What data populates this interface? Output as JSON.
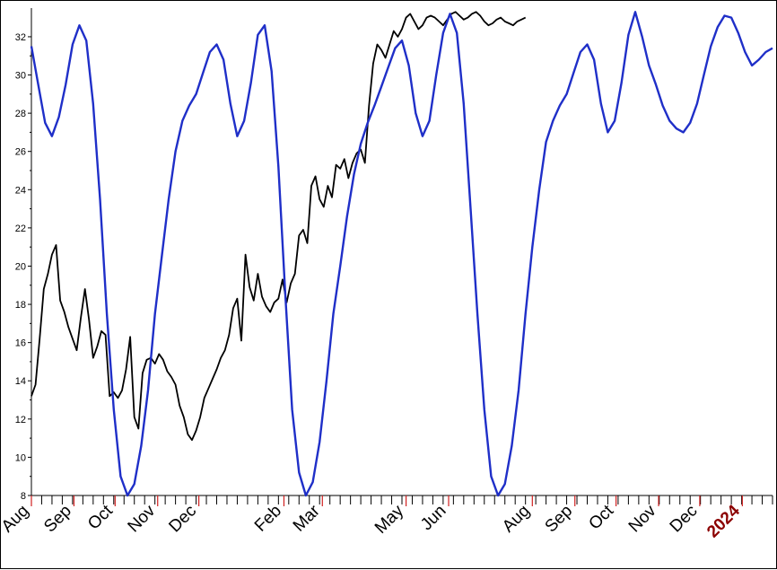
{
  "chart_data": {
    "type": "line",
    "title": "",
    "xlabel": "",
    "ylabel": "",
    "ylim": [
      8,
      33.5
    ],
    "yticks": [
      8,
      10,
      12,
      14,
      16,
      18,
      20,
      22,
      24,
      26,
      28,
      30,
      32
    ],
    "grid": false,
    "legend": "none",
    "x_tick_labels": [
      {
        "label": "Aug",
        "x": 0
      },
      {
        "label": "Sep",
        "x": 31
      },
      {
        "label": "Oct",
        "x": 61
      },
      {
        "label": "Nov",
        "x": 92
      },
      {
        "label": "Dec",
        "x": 122
      },
      {
        "label": "Feb",
        "x": 184
      },
      {
        "label": "Mar",
        "x": 212
      },
      {
        "label": "May",
        "x": 273
      },
      {
        "label": "Jun",
        "x": 304
      },
      {
        "label": "Aug",
        "x": 365
      },
      {
        "label": "Sep",
        "x": 396
      },
      {
        "label": "Oct",
        "x": 426
      },
      {
        "label": "Nov",
        "x": 457
      },
      {
        "label": "Dec",
        "x": 487
      },
      {
        "label": "2024",
        "x": 518,
        "highlight": true
      }
    ],
    "series": [
      {
        "color": "#000000",
        "style": "price",
        "x": [
          0,
          3,
          6,
          9,
          12,
          15,
          18,
          21,
          24,
          27,
          30,
          33,
          36,
          39,
          42,
          45,
          48,
          51,
          54,
          57,
          60,
          63,
          66,
          69,
          72,
          75,
          78,
          81,
          84,
          87,
          90,
          93,
          96,
          99,
          102,
          105,
          108,
          111,
          114,
          117,
          120,
          123,
          126,
          129,
          132,
          135,
          138,
          141,
          144,
          147,
          150,
          153,
          156,
          159,
          162,
          165,
          168,
          171,
          174,
          177,
          180,
          183,
          186,
          189,
          192,
          195,
          198,
          201,
          204,
          207,
          210,
          213,
          216,
          219,
          222,
          225,
          228,
          231,
          234,
          237,
          240,
          243,
          246,
          249,
          252,
          255,
          258,
          261,
          264,
          267,
          270,
          273,
          276,
          279,
          282,
          285,
          288,
          291,
          294,
          297,
          300,
          303,
          306,
          309,
          312,
          315,
          318,
          321,
          324,
          327,
          330,
          333,
          336,
          339,
          342,
          345,
          348,
          351,
          354,
          357,
          360
        ],
        "values": [
          13.2,
          13.8,
          16.2,
          18.8,
          19.6,
          20.6,
          21.1,
          18.2,
          17.6,
          16.8,
          16.2,
          15.6,
          17.3,
          18.8,
          17.2,
          15.2,
          15.8,
          16.6,
          16.4,
          13.2,
          13.4,
          13.1,
          13.5,
          14.6,
          16.3,
          12.1,
          11.5,
          14.4,
          15.1,
          15.2,
          14.9,
          15.4,
          15.1,
          14.5,
          14.2,
          13.8,
          12.7,
          12.1,
          11.2,
          10.9,
          11.4,
          12.1,
          13.1,
          13.6,
          14.1,
          14.6,
          15.2,
          15.6,
          16.4,
          17.8,
          18.3,
          16.1,
          20.6,
          18.9,
          18.2,
          19.6,
          18.4,
          17.9,
          17.6,
          18.1,
          18.3,
          19.3,
          18.1,
          19.1,
          19.6,
          21.6,
          21.9,
          21.2,
          24.2,
          24.7,
          23.5,
          23.1,
          24.2,
          23.6,
          25.3,
          25.1,
          25.6,
          24.6,
          25.4,
          25.9,
          26.1,
          25.4,
          28.4,
          30.6,
          31.6,
          31.3,
          30.9,
          31.6,
          32.3,
          32.0,
          32.4,
          33.0,
          33.2,
          32.8,
          32.4,
          32.6,
          33.0,
          33.1,
          33.0,
          32.8,
          32.6,
          32.9,
          33.2,
          33.3,
          33.1,
          32.9,
          33.0,
          33.2,
          33.3,
          33.1,
          32.8,
          32.6,
          32.7,
          32.9,
          33.0,
          32.8,
          32.7,
          32.6,
          32.8,
          32.9,
          33.0
        ]
      },
      {
        "color": "#1f2fc8",
        "style": "cycle",
        "x": [
          0,
          5,
          10,
          15,
          20,
          25,
          30,
          35,
          40,
          45,
          50,
          55,
          60,
          65,
          70,
          75,
          80,
          85,
          90,
          95,
          100,
          105,
          110,
          115,
          120,
          125,
          130,
          135,
          140,
          145,
          150,
          155,
          160,
          165,
          170,
          175,
          180,
          185,
          190,
          195,
          200,
          205,
          210,
          215,
          220,
          225,
          230,
          235,
          240,
          245,
          250,
          255,
          260,
          265,
          270,
          275,
          280,
          285,
          290,
          295,
          300,
          305,
          310,
          315,
          320,
          325,
          330,
          335,
          340,
          345,
          350,
          355,
          360,
          365,
          370,
          375,
          380,
          385,
          390,
          395,
          400,
          405,
          410,
          415,
          420,
          425,
          430,
          435,
          440,
          445,
          450,
          455,
          460,
          465,
          470,
          475,
          480,
          485,
          490,
          495,
          500,
          505,
          510,
          515,
          520,
          525,
          530,
          535,
          540
        ],
        "values": [
          31.5,
          29.5,
          27.5,
          26.8,
          27.8,
          29.5,
          31.6,
          32.6,
          31.8,
          28.5,
          23.5,
          17.5,
          12.5,
          9.0,
          8.0,
          8.6,
          10.6,
          13.5,
          17.5,
          20.5,
          23.5,
          26.0,
          27.6,
          28.4,
          29.0,
          30.1,
          31.2,
          31.6,
          30.8,
          28.5,
          26.8,
          27.6,
          29.6,
          32.1,
          32.6,
          30.2,
          25.2,
          18.5,
          12.5,
          9.2,
          8.0,
          8.7,
          10.8,
          14.0,
          17.5,
          20.0,
          22.6,
          24.8,
          26.4,
          27.5,
          28.4,
          29.4,
          30.4,
          31.4,
          31.8,
          30.5,
          28.0,
          26.8,
          27.6,
          30.0,
          32.2,
          33.2,
          32.2,
          28.5,
          23.0,
          17.5,
          12.5,
          9.0,
          8.0,
          8.6,
          10.6,
          13.5,
          17.5,
          21.0,
          24.0,
          26.5,
          27.6,
          28.4,
          29.0,
          30.1,
          31.2,
          31.6,
          30.8,
          28.5,
          27.0,
          27.6,
          29.6,
          32.1,
          33.3,
          32.0,
          30.5,
          29.5,
          28.4,
          27.6,
          27.2,
          27.0,
          27.5,
          28.5,
          30.0,
          31.5,
          32.5,
          33.1,
          33.0,
          32.2,
          31.2,
          30.5,
          30.8,
          31.2,
          31.4
        ]
      }
    ]
  }
}
